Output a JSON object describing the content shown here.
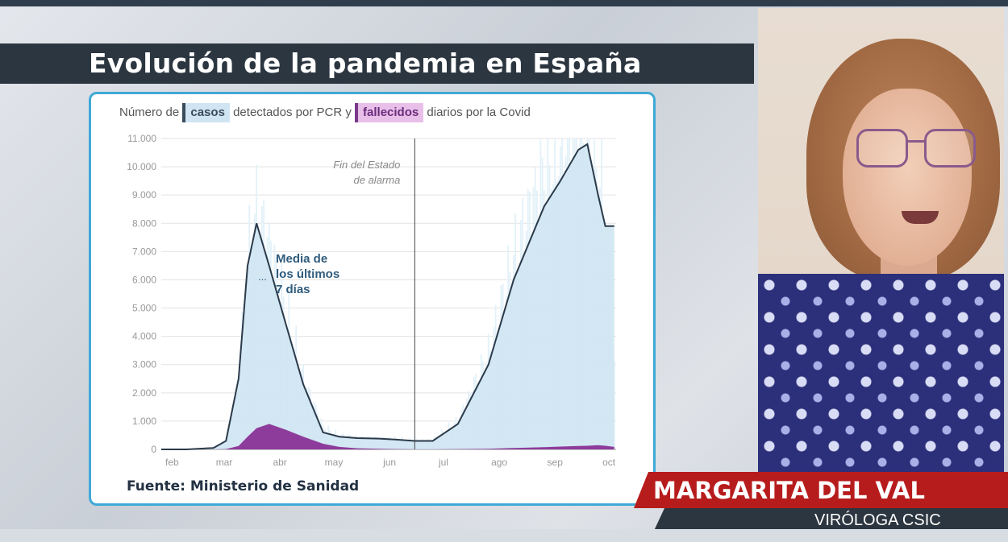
{
  "header": {
    "title": "Evolución de la pandemia en España"
  },
  "subtitle": {
    "prefix": "Número de",
    "cases_label": "casos",
    "middle": "detectados por PCR y",
    "deaths_label": "fallecidos",
    "suffix": "diarios por la Covid"
  },
  "source": "Fuente: Ministerio de Sanidad",
  "lower_third": {
    "name": "MARGARITA DEL VAL",
    "role": "VIRÓLOGA CSIC"
  },
  "colors": {
    "cases_fill": "#cfe5f2",
    "cases_bars": "#e3f1f9",
    "avg_line": "#2b3a4a",
    "deaths_fill": "#8e3c9c",
    "card_border": "#3fa9d6",
    "name_bar": "#b71c1c",
    "title_bar": "#2c3640"
  },
  "chart_data": {
    "type": "area",
    "ylim": [
      0,
      11000
    ],
    "y_ticks": [
      0,
      1000,
      2000,
      3000,
      4000,
      5000,
      6000,
      7000,
      8000,
      9000,
      10000,
      11000
    ],
    "y_tick_labels": [
      "0",
      "1.000",
      "2.000",
      "3.000",
      "4.000",
      "5.000",
      "6.000",
      "7.000",
      "8.000",
      "9.000",
      "10.000",
      "11.000"
    ],
    "x_tick_labels": [
      "feb",
      "mar",
      "abr",
      "may",
      "jun",
      "jul",
      "ago",
      "sep",
      "oct"
    ],
    "grid": true,
    "x": [
      "feb 01",
      "feb 15",
      "mar 01",
      "mar 08",
      "mar 15",
      "mar 20",
      "mar 25",
      "abr 01",
      "abr 10",
      "abr 20",
      "may 01",
      "may 10",
      "may 20",
      "jun 01",
      "jun 10",
      "jun 21",
      "jul 01",
      "jul 15",
      "ago 01",
      "ago 15",
      "sep 01",
      "sep 10",
      "sep 20",
      "sep 25",
      "oct 01",
      "oct 05",
      "oct 10"
    ],
    "series": [
      {
        "name": "Media de los últimos 7 días",
        "values": [
          0,
          0,
          50,
          300,
          2500,
          6500,
          8000,
          6500,
          4500,
          2300,
          600,
          450,
          400,
          380,
          350,
          300,
          300,
          900,
          3000,
          6000,
          8600,
          9500,
          10600,
          10800,
          9000,
          7900,
          7900
        ]
      },
      {
        "name": "casos",
        "values": [
          0,
          0,
          50,
          250,
          2300,
          6800,
          8400,
          7200,
          5000,
          2500,
          800,
          500,
          420,
          400,
          380,
          320,
          330,
          1000,
          3400,
          6800,
          9800,
          10800,
          11000,
          11000,
          10200,
          8000,
          2800
        ]
      },
      {
        "name": "fallecidos",
        "values": [
          0,
          0,
          0,
          10,
          120,
          450,
          750,
          900,
          700,
          450,
          200,
          90,
          40,
          20,
          10,
          5,
          5,
          10,
          20,
          50,
          80,
          100,
          120,
          130,
          150,
          130,
          90
        ]
      }
    ],
    "annotations": [
      {
        "label_line1": "Fin del Estado",
        "label_line2": "de alarma",
        "x": "jun 21"
      },
      {
        "label_line1": "Media de",
        "label_line2": "los últimos",
        "label_line3": "7 días",
        "marker": "..."
      }
    ]
  }
}
